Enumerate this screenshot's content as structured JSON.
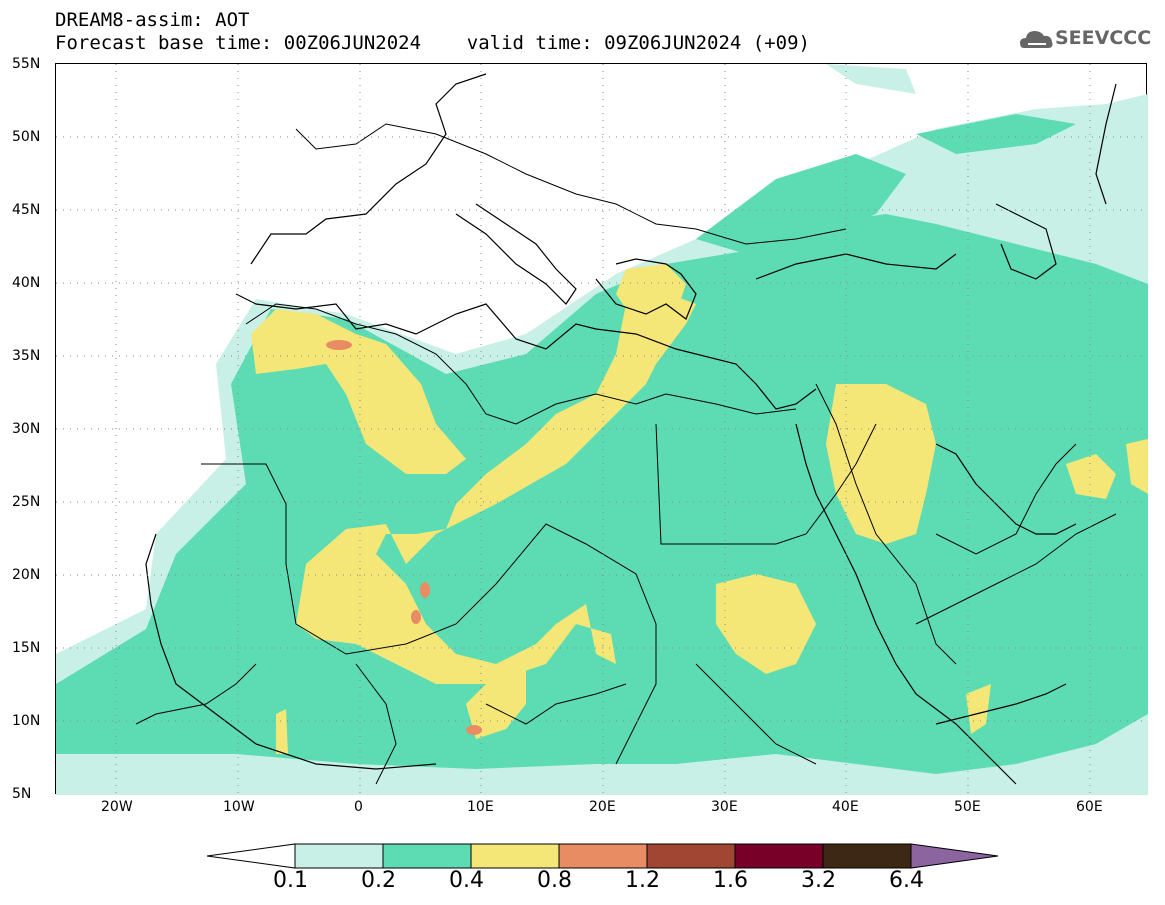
{
  "header": {
    "title_line1": "DREAM8-assim: AOT",
    "title_line2": "Forecast base time: 00Z06JUN2024    valid time: 09Z06JUN2024 (+09)"
  },
  "logo": {
    "text": "SEEVCCC",
    "icon": "cloud-icon"
  },
  "axes": {
    "lat_labels": [
      "55N",
      "50N",
      "45N",
      "40N",
      "35N",
      "30N",
      "25N",
      "20N",
      "15N",
      "10N",
      "5N"
    ],
    "lon_labels": [
      "20W",
      "10W",
      "0",
      "10E",
      "20E",
      "30E",
      "40E",
      "50E",
      "60E"
    ]
  },
  "colorbar": {
    "labels": [
      "0.1",
      "0.2",
      "0.4",
      "0.8",
      "1.2",
      "1.6",
      "3.2",
      "6.4"
    ],
    "colors": [
      "#c8f0e6",
      "#5ddcb4",
      "#f5e678",
      "#e88c64",
      "#a04632",
      "#780028",
      "#3c2814",
      "#8c64a0"
    ]
  },
  "colors": {
    "level_0_1": "#c8f0e6",
    "level_0_2": "#5ddcb4",
    "level_0_4": "#f5e678",
    "level_0_8": "#e88c64",
    "land_lines": "#000000"
  }
}
